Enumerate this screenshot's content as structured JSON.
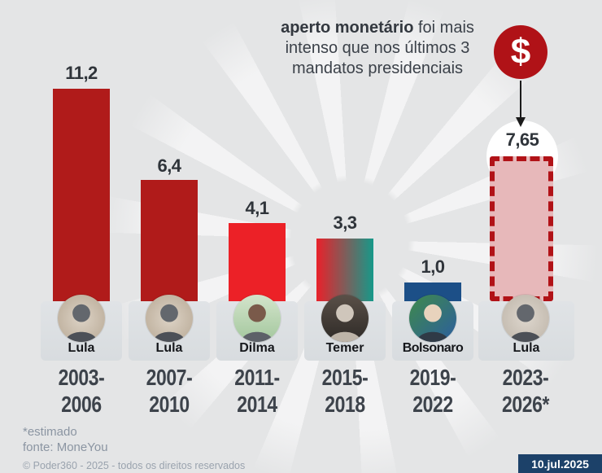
{
  "title": {
    "line1_bold": "aperto monetário",
    "line1_rest": " foi mais",
    "line2": "intenso que nos últimos 3",
    "line3": "mandatos presidenciais"
  },
  "annotation": {
    "dollar_symbol": "$"
  },
  "chart_data": {
    "type": "bar",
    "title": "aperto monetário foi mais intenso que nos últimos 3 mandatos presidenciais",
    "categories": [
      "2003-2006",
      "2007-2010",
      "2011-2014",
      "2015-2018",
      "2019-2022",
      "2023-2026*"
    ],
    "presidents": [
      "Lula",
      "Lula",
      "Dilma",
      "Temer",
      "Bolsonaro",
      "Lula"
    ],
    "values": [
      11.2,
      6.4,
      4.1,
      3.3,
      1.0,
      7.65
    ],
    "value_labels": [
      "11,2",
      "6,4",
      "4,1",
      "3,3",
      "1,0",
      "7,65"
    ],
    "estimated_index": 5,
    "ylim": [
      0,
      12
    ],
    "grid": false,
    "legend": false,
    "bar_styles": [
      "#b01b1a",
      "#b01b1a",
      "#ec2127",
      "linear-gradient(90deg,#e9212a,#16998a)",
      "#1c4f87",
      "estimated"
    ]
  },
  "colors": {
    "background": "#e4e5e6",
    "bar_red_dark": "#b01b1a",
    "bar_red_bright": "#ec2127",
    "bar_gradient_left": "#e9212a",
    "bar_gradient_right": "#16998a",
    "bar_blue": "#1c4f87",
    "estimated_fill": "#e7b8ba",
    "estimated_border": "#b11217",
    "dollar_circle": "#b01217",
    "date_badge_bg": "#1c4169",
    "footer_text": "#8b95a2"
  },
  "footer": {
    "note": "*estimado",
    "source": "fonte: MoneYou",
    "copyright": "© Poder360 - 2025 - todos os direitos reservados",
    "date": "10.jul.2025"
  }
}
